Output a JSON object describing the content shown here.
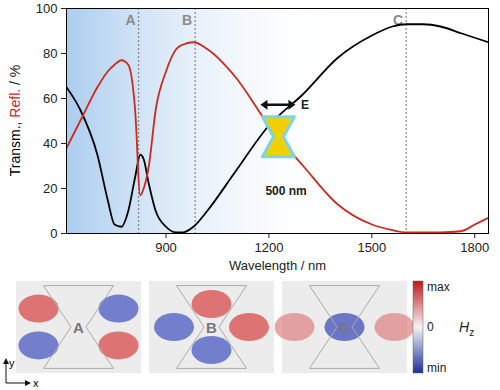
{
  "chart_data": {
    "type": "line",
    "xlabel": "Wavelength / nm",
    "ylabel": "Transm., Refl. / %",
    "xlim": [
      610,
      1840
    ],
    "xticks": [
      900,
      1200,
      1500,
      1800
    ],
    "ylim": [
      0,
      100
    ],
    "yticks": [
      0,
      20,
      40,
      60,
      80,
      100
    ],
    "grid": false,
    "x": [
      610,
      650,
      700,
      730,
      750,
      770,
      790,
      810,
      825,
      835,
      850,
      870,
      900,
      930,
      950,
      980,
      1020,
      1100,
      1200,
      1300,
      1400,
      1500,
      1560,
      1600,
      1650,
      1700,
      1760,
      1800,
      1840
    ],
    "series": [
      {
        "name": "Transm.",
        "color": "#000000",
        "values": [
          65,
          55,
          35,
          15,
          4,
          3,
          10,
          25,
          35,
          33,
          22,
          10,
          3,
          0.5,
          0.5,
          3,
          10,
          27,
          48,
          62,
          78,
          88,
          92,
          93,
          93,
          92,
          89,
          87,
          85
        ]
      },
      {
        "name": "Refl.",
        "color": "#cc2a1e",
        "values": [
          38,
          50,
          65,
          72,
          75,
          77,
          75,
          55,
          17,
          20,
          30,
          55,
          72,
          82,
          84,
          85,
          82,
          70,
          48,
          30,
          13,
          4,
          1.5,
          0.5,
          0.5,
          0.5,
          1,
          4,
          7
        ]
      }
    ],
    "markers": [
      {
        "x": 820,
        "label": "A"
      },
      {
        "x": 985,
        "label": "B"
      },
      {
        "x": 1600,
        "label": "C"
      }
    ],
    "annotations": [
      {
        "x": 1305,
        "y": 57,
        "text": "E"
      },
      {
        "x": 1250,
        "y": 19,
        "text": "500 nm"
      }
    ],
    "field_maps": {
      "panels": [
        "A",
        "B",
        "C"
      ],
      "colorbar": {
        "labels": [
          "max",
          "0",
          "min"
        ],
        "title": {
          "main": "H",
          "sub": "z"
        }
      },
      "axes": [
        "y",
        "x"
      ]
    }
  }
}
